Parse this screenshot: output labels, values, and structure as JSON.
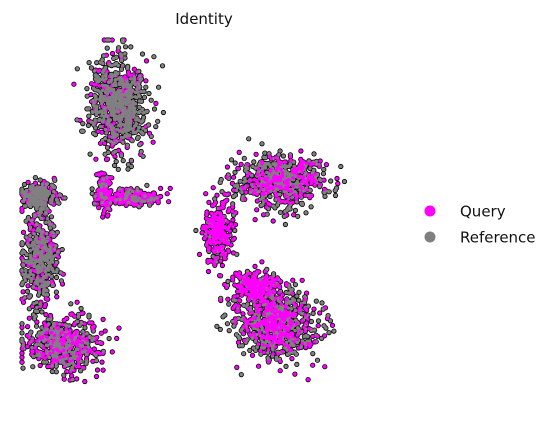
{
  "chart_data": {
    "type": "scatter",
    "title": "Identity",
    "xlabel": "",
    "ylabel": "",
    "axes_visible": false,
    "grid": false,
    "legend_placement": "right",
    "xlim": [
      0,
      10
    ],
    "ylim": [
      0,
      8
    ],
    "series": [
      {
        "name": "Reference",
        "color": "#808080"
      },
      {
        "name": "Query",
        "color": "#ff00ff"
      }
    ],
    "legend": [
      {
        "label": "Query",
        "color": "#ff00ff"
      },
      {
        "label": "Reference",
        "color": "#808080"
      }
    ],
    "clusters": [
      {
        "center": [
          2.6,
          6.6
        ],
        "spread": [
          0.7,
          0.95
        ],
        "points": 700,
        "query_fraction": 0.3
      },
      {
        "center": [
          2.2,
          4.7
        ],
        "spread": [
          0.2,
          0.4
        ],
        "points": 160,
        "query_fraction": 0.85
      },
      {
        "center": [
          3.05,
          4.55
        ],
        "spread": [
          0.7,
          0.15
        ],
        "points": 220,
        "query_fraction": 0.85
      },
      {
        "center": [
          0.45,
          4.55
        ],
        "spread": [
          0.45,
          0.3
        ],
        "points": 220,
        "query_fraction": 0.25
      },
      {
        "center": [
          0.5,
          3.2
        ],
        "spread": [
          0.45,
          0.9
        ],
        "points": 420,
        "query_fraction": 0.4
      },
      {
        "center": [
          1.1,
          1.3
        ],
        "spread": [
          0.95,
          0.55
        ],
        "points": 520,
        "query_fraction": 0.6
      },
      {
        "center": [
          7.0,
          4.9
        ],
        "spread": [
          1.05,
          0.5
        ],
        "points": 620,
        "query_fraction": 0.3
      },
      {
        "center": [
          5.3,
          3.8
        ],
        "spread": [
          0.35,
          0.6
        ],
        "points": 260,
        "query_fraction": 0.8
      },
      {
        "center": [
          6.3,
          2.6
        ],
        "spread": [
          0.6,
          0.3
        ],
        "points": 260,
        "query_fraction": 0.75
      },
      {
        "center": [
          6.9,
          1.8
        ],
        "spread": [
          1.0,
          0.7
        ],
        "points": 700,
        "query_fraction": 0.4
      }
    ]
  }
}
